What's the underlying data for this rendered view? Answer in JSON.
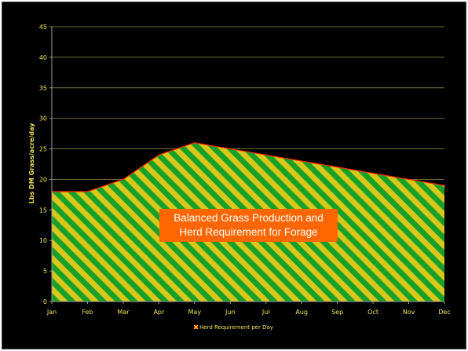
{
  "chart_data": {
    "type": "area",
    "categories": [
      "Jan",
      "Feb",
      "Mar",
      "Apr",
      "May",
      "Jun",
      "Jul",
      "Aug",
      "Sep",
      "Oct",
      "Nov",
      "Dec"
    ],
    "series": [
      {
        "name": "Herd Requirement per Day",
        "values": [
          18,
          18,
          20,
          24,
          26,
          25,
          24,
          23,
          22,
          21,
          20,
          19
        ]
      }
    ],
    "ylabel": "Lbs DM Grass/acre/day",
    "xlabel": "",
    "ylim": [
      0,
      45
    ],
    "yticks": [
      0,
      5,
      10,
      15,
      20,
      25,
      30,
      35,
      40,
      45
    ],
    "grid": true,
    "legend_position": "bottom",
    "annotation": {
      "line1": "Balanced Grass Production and",
      "line2": "Herd Requirement for Forage"
    },
    "colors": {
      "background": "#000000",
      "gridline": "#6e6e36",
      "axis_text": "#f2e35a",
      "fill_stripe_a": "#d9c81b",
      "fill_stripe_b": "#18a028",
      "line": "#ff2200",
      "annotation_bg": "#ff6600",
      "annotation_text": "#ffffff"
    }
  }
}
